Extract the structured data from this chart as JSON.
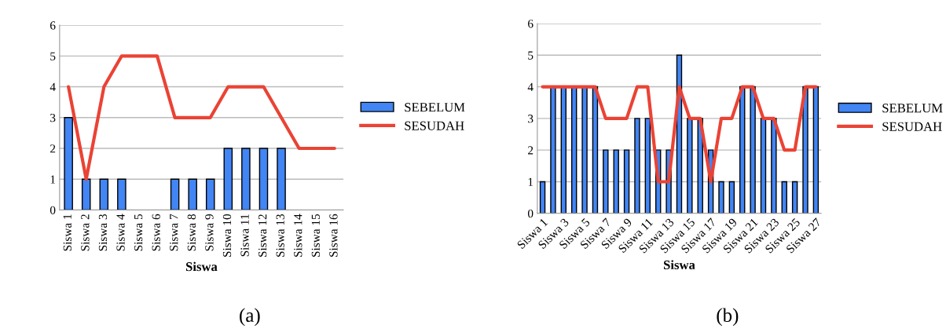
{
  "chart_data": [
    {
      "type": "bar",
      "xlabel": "Siswa",
      "categories": [
        "Siswa 1",
        "Siswa 2",
        "Siswa 3",
        "Siswa 4",
        "Siswa 5",
        "Siswa 6",
        "Siswa 7",
        "Siswa 8",
        "Siswa 9",
        "Siswa 10",
        "Siswa 11",
        "Siswa 12",
        "Siswa 13",
        "Siswa 14",
        "Siswa 15",
        "Siswa 16"
      ],
      "series": [
        {
          "name": "SEBELUM",
          "color": "#4285f4",
          "values": [
            3,
            1,
            1,
            1,
            0,
            0,
            1,
            1,
            1,
            2,
            2,
            2,
            2,
            0,
            0,
            0
          ]
        },
        {
          "name": "SESUDAH",
          "type": "line",
          "color": "#ea4335",
          "values": [
            4,
            1,
            4,
            5,
            5,
            5,
            3,
            3,
            3,
            4,
            4,
            4,
            3,
            2,
            2,
            2
          ]
        }
      ],
      "ylim": [
        0,
        6
      ],
      "yticks": [
        0,
        1,
        2,
        3,
        4,
        5,
        6
      ],
      "grid": "y",
      "legend": "right",
      "annotations": [
        "(a)"
      ]
    },
    {
      "type": "bar",
      "xlabel": "Siswa",
      "categories": [
        "Siswa 1",
        null,
        "Siswa 3",
        null,
        "Siswa 5",
        null,
        "Siswa 7",
        null,
        "Siswa 9",
        null,
        "Siswa 11",
        null,
        "Siswa 13",
        null,
        "Siswa 15",
        null,
        "Siswa 17",
        null,
        "Siswa 19",
        null,
        "Siswa 21",
        null,
        "Siswa 23",
        null,
        "Siswa 25",
        null,
        "Siswa 27"
      ],
      "series": [
        {
          "name": "SEBELUM",
          "color": "#4285f4",
          "values": [
            1,
            4,
            4,
            4,
            4,
            4,
            2,
            2,
            2,
            3,
            3,
            2,
            2,
            5,
            3,
            3,
            2,
            1,
            1,
            4,
            4,
            3,
            3,
            1,
            1,
            4,
            4
          ]
        },
        {
          "name": "SESUDAH",
          "type": "line",
          "color": "#ea4335",
          "values": [
            4,
            4,
            4,
            4,
            4,
            4,
            3,
            3,
            3,
            4,
            4,
            1,
            1,
            4,
            3,
            3,
            1,
            3,
            3,
            4,
            4,
            3,
            3,
            2,
            2,
            4,
            4
          ]
        }
      ],
      "ylim": [
        0,
        6
      ],
      "yticks": [
        0,
        1,
        2,
        3,
        4,
        5,
        6
      ],
      "grid": "y",
      "legend": "right",
      "annotations": [
        "(b)"
      ]
    }
  ]
}
